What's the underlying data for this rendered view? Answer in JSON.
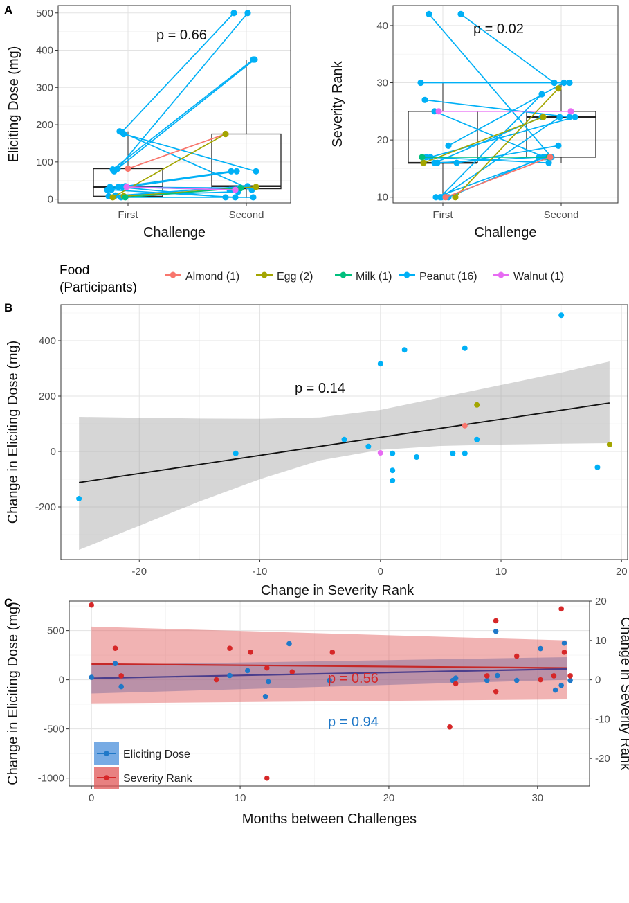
{
  "legend": {
    "title": "Food\n(Participants)",
    "items": [
      {
        "label": "Almond (1)",
        "color": "#F8766D"
      },
      {
        "label": "Egg (2)",
        "color": "#A3A500"
      },
      {
        "label": "Milk (1)",
        "color": "#00BF7D"
      },
      {
        "label": "Peanut (16)",
        "color": "#00B0F6"
      },
      {
        "label": "Walnut (1)",
        "color": "#E76BF3"
      }
    ]
  },
  "panels": {
    "A": {
      "letter": "A"
    },
    "B": {
      "letter": "B"
    },
    "C": {
      "letter": "C"
    }
  },
  "chart_data": [
    {
      "id": "A-left",
      "type": "box+paired-points",
      "xlabel": "Challenge",
      "ylabel": "Eliciting Dose (mg)",
      "categories": [
        "First",
        "Second"
      ],
      "ylim": [
        -10,
        520
      ],
      "yticks": [
        0,
        100,
        200,
        300,
        400,
        500
      ],
      "grid": true,
      "annotation": "p = 0.66",
      "boxes": [
        {
          "category": "First",
          "q1": 8,
          "median": 33,
          "q3": 82,
          "whisker_low": 3,
          "whisker_high": 182
        },
        {
          "category": "Second",
          "q1": 28,
          "median": 35,
          "q3": 175,
          "whisker_low": 3,
          "whisker_high": 375
        }
      ],
      "pairs": [
        {
          "food": "Peanut",
          "first": 182,
          "second": 25
        },
        {
          "food": "Peanut",
          "first": 180,
          "second": 500
        },
        {
          "food": "Peanut",
          "first": 175,
          "second": 75
        },
        {
          "food": "Almond",
          "first": 82,
          "second": 175
        },
        {
          "food": "Peanut",
          "first": 82,
          "second": 500
        },
        {
          "food": "Peanut",
          "first": 80,
          "second": 375
        },
        {
          "food": "Peanut",
          "first": 75,
          "second": 375
        },
        {
          "food": "Peanut",
          "first": 35,
          "second": 75
        },
        {
          "food": "Peanut",
          "first": 33,
          "second": 30
        },
        {
          "food": "Peanut",
          "first": 33,
          "second": 25
        },
        {
          "food": "Peanut",
          "first": 33,
          "second": 5
        },
        {
          "food": "Peanut",
          "first": 25,
          "second": 75
        },
        {
          "food": "Peanut",
          "first": 25,
          "second": 5
        },
        {
          "food": "Peanut",
          "first": 10,
          "second": 20
        },
        {
          "food": "Peanut",
          "first": 8,
          "second": 35
        },
        {
          "food": "Peanut",
          "first": 5,
          "second": 5
        },
        {
          "food": "Egg",
          "first": 5,
          "second": 175
        },
        {
          "food": "Egg",
          "first": 8,
          "second": 33
        },
        {
          "food": "Milk",
          "first": 5,
          "second": 30
        },
        {
          "food": "Walnut",
          "first": 33,
          "second": 25
        }
      ]
    },
    {
      "id": "A-right",
      "type": "box+paired-points",
      "xlabel": "Challenge",
      "ylabel": "Severity Rank",
      "categories": [
        "First",
        "Second"
      ],
      "ylim": [
        9,
        43.5
      ],
      "yticks": [
        10,
        20,
        30,
        40
      ],
      "grid": true,
      "annotation": "p = 0.02",
      "boxes": [
        {
          "category": "First",
          "q1": 16,
          "median": 16,
          "q3": 25,
          "whisker_low": 10,
          "whisker_high": 30
        },
        {
          "category": "Second",
          "q1": 17,
          "median": 24,
          "q3": 25,
          "whisker_low": 16,
          "whisker_high": 30
        }
      ],
      "pairs": [
        {
          "food": "Peanut",
          "first": 42,
          "second": 17
        },
        {
          "food": "Peanut",
          "first": 42,
          "second": 30
        },
        {
          "food": "Peanut",
          "first": 30,
          "second": 30
        },
        {
          "food": "Peanut",
          "first": 27,
          "second": 24
        },
        {
          "food": "Peanut",
          "first": 25,
          "second": 17
        },
        {
          "food": "Walnut",
          "first": 25,
          "second": 25
        },
        {
          "food": "Peanut",
          "first": 19,
          "second": 30
        },
        {
          "food": "Peanut",
          "first": 17,
          "second": 16
        },
        {
          "food": "Peanut",
          "first": 17,
          "second": 24
        },
        {
          "food": "Peanut",
          "first": 16,
          "second": 17
        },
        {
          "food": "Peanut",
          "first": 16,
          "second": 19
        },
        {
          "food": "Peanut",
          "first": 16,
          "second": 24
        },
        {
          "food": "Peanut",
          "first": 10,
          "second": 17
        },
        {
          "food": "Peanut",
          "first": 10,
          "second": 28
        },
        {
          "food": "Peanut",
          "first": 10,
          "second": 24
        },
        {
          "food": "Peanut",
          "first": 10,
          "second": 17
        },
        {
          "food": "Egg",
          "first": 16,
          "second": 24
        },
        {
          "food": "Egg",
          "first": 10,
          "second": 29
        },
        {
          "food": "Milk",
          "first": 17,
          "second": 17
        },
        {
          "food": "Almond",
          "first": 10,
          "second": 17
        }
      ]
    },
    {
      "id": "B",
      "type": "scatter+regression",
      "xlabel": "Change in Severity Rank",
      "ylabel": "Change in Eliciting Dose (mg)",
      "xlim": [
        -26.5,
        20.5
      ],
      "ylim": [
        -390,
        530
      ],
      "xticks": [
        -20,
        -10,
        0,
        10,
        20
      ],
      "yticks": [
        -200,
        0,
        200,
        400
      ],
      "grid": true,
      "annotation": "p = 0.14",
      "fit": {
        "x": [
          -25,
          19
        ],
        "y": [
          -112,
          175
        ]
      },
      "band": [
        {
          "x": -25,
          "lo": -355,
          "hi": 125
        },
        {
          "x": -20,
          "lo": -268,
          "hi": 122
        },
        {
          "x": -15,
          "lo": -180,
          "hi": 119
        },
        {
          "x": -10,
          "lo": -100,
          "hi": 118
        },
        {
          "x": -5,
          "lo": -32,
          "hi": 123
        },
        {
          "x": 0,
          "lo": 6,
          "hi": 150
        },
        {
          "x": 5,
          "lo": 20,
          "hi": 195
        },
        {
          "x": 10,
          "lo": 25,
          "hi": 240
        },
        {
          "x": 15,
          "lo": 28,
          "hi": 285
        },
        {
          "x": 19,
          "lo": 30,
          "hi": 325
        }
      ],
      "points": [
        {
          "x": -25,
          "y": -170,
          "food": "Peanut"
        },
        {
          "x": -12,
          "y": -7,
          "food": "Peanut"
        },
        {
          "x": -3,
          "y": 43,
          "food": "Peanut"
        },
        {
          "x": -1,
          "y": 18,
          "food": "Peanut"
        },
        {
          "x": 0,
          "y": 317,
          "food": "Peanut"
        },
        {
          "x": 0,
          "y": -5,
          "food": "Walnut"
        },
        {
          "x": 1,
          "y": -7,
          "food": "Peanut"
        },
        {
          "x": 1,
          "y": -68,
          "food": "Peanut"
        },
        {
          "x": 1,
          "y": -105,
          "food": "Peanut"
        },
        {
          "x": 2,
          "y": 367,
          "food": "Peanut"
        },
        {
          "x": 3,
          "y": -20,
          "food": "Peanut"
        },
        {
          "x": 6,
          "y": -7,
          "food": "Peanut"
        },
        {
          "x": 7,
          "y": 373,
          "food": "Peanut"
        },
        {
          "x": 7,
          "y": 93,
          "food": "Almond"
        },
        {
          "x": 7,
          "y": -7,
          "food": "Peanut"
        },
        {
          "x": 8,
          "y": 168,
          "food": "Egg"
        },
        {
          "x": 8,
          "y": 43,
          "food": "Peanut"
        },
        {
          "x": 15,
          "y": 492,
          "food": "Peanut"
        },
        {
          "x": 18,
          "y": -57,
          "food": "Peanut"
        },
        {
          "x": 19,
          "y": 25,
          "food": "Egg"
        }
      ]
    },
    {
      "id": "C",
      "type": "dual-axis-scatter+regression",
      "xlabel": "Months between Challenges",
      "ylabel": "Change in Eliciting Dose (mg)",
      "ylabel_right": "Change in Severity Rank",
      "xlim": [
        -1.5,
        33.5
      ],
      "ylim": [
        -1080,
        800
      ],
      "ylim_right": [
        -27,
        20
      ],
      "xticks": [
        0,
        10,
        20,
        30
      ],
      "yticks": [
        -1000,
        -500,
        0,
        500
      ],
      "yticks_right": [
        -20,
        -10,
        0,
        10,
        20
      ],
      "grid": true,
      "legend_items": [
        {
          "label": "Eliciting Dose",
          "color": "#1F78C8"
        },
        {
          "label": "Severity Rank",
          "color": "#D62728"
        }
      ],
      "annotations": [
        {
          "text": "p = 0.56",
          "color": "#D62728"
        },
        {
          "text": "p = 0.94",
          "color": "#1F78C8"
        }
      ],
      "series": [
        {
          "name": "Eliciting Dose",
          "color": "#1F78C8",
          "fit": {
            "x": [
              0,
              32
            ],
            "y": [
              15,
              110
            ]
          },
          "band": {
            "x": [
              0,
              32
            ],
            "lo": [
              -140,
              0
            ],
            "hi": [
              150,
              230
            ]
          },
          "points": [
            [
              0,
              25
            ],
            [
              1.6,
              165
            ],
            [
              2,
              -70
            ],
            [
              9.3,
              43
            ],
            [
              10.5,
              93
            ],
            [
              11.7,
              -170
            ],
            [
              11.9,
              -20
            ],
            [
              13.3,
              367
            ],
            [
              16,
              -7
            ],
            [
              24.3,
              -7
            ],
            [
              24.5,
              17
            ],
            [
              26.6,
              -7
            ],
            [
              27.2,
              492
            ],
            [
              27.3,
              43
            ],
            [
              28.6,
              -7
            ],
            [
              30.2,
              317
            ],
            [
              31.2,
              -105
            ],
            [
              31.6,
              -57
            ],
            [
              31.8,
              373
            ],
            [
              32.2,
              -7
            ]
          ]
        },
        {
          "name": "Severity Rank",
          "color": "#D62728",
          "fit": {
            "x": [
              0,
              32
            ],
            "y": [
              4,
              3
            ]
          },
          "band": {
            "x": [
              0,
              32
            ],
            "lo": [
              -6,
              -5
            ],
            "hi": [
              13.5,
              10
            ]
          },
          "points": [
            [
              0,
              19
            ],
            [
              1.6,
              8
            ],
            [
              2,
              1
            ],
            [
              8.4,
              0
            ],
            [
              9.3,
              8
            ],
            [
              10.7,
              7
            ],
            [
              11.8,
              3
            ],
            [
              11.8,
              -25
            ],
            [
              13.5,
              2
            ],
            [
              16.2,
              7
            ],
            [
              24.1,
              -12
            ],
            [
              24.5,
              -1
            ],
            [
              26.6,
              1
            ],
            [
              27.2,
              15
            ],
            [
              27.2,
              -3
            ],
            [
              28.6,
              6
            ],
            [
              30.2,
              0
            ],
            [
              31.1,
              1
            ],
            [
              31.6,
              18
            ],
            [
              31.8,
              7
            ],
            [
              32.2,
              1
            ]
          ]
        }
      ]
    }
  ]
}
